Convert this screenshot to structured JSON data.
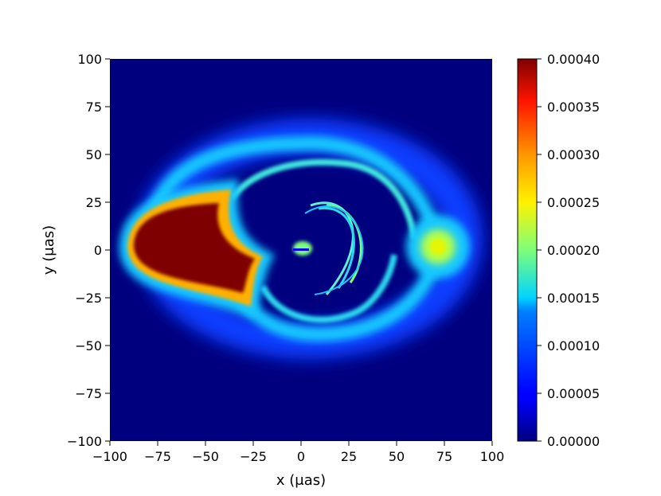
{
  "chart_data": {
    "type": "heatmap",
    "title": "",
    "xlabel": "x (μas)",
    "ylabel": "y (μas)",
    "xlim": [
      -100,
      100
    ],
    "ylim": [
      -100,
      100
    ],
    "xticks": [
      "−100",
      "−75",
      "−50",
      "−25",
      "0",
      "25",
      "50",
      "75",
      "100"
    ],
    "yticks": [
      "−100",
      "−75",
      "−50",
      "−25",
      "0",
      "25",
      "50",
      "75",
      "100"
    ],
    "xtick_values": [
      -100,
      -75,
      -50,
      -25,
      0,
      25,
      50,
      75,
      100
    ],
    "ytick_values": [
      -100,
      -75,
      -50,
      -25,
      0,
      25,
      50,
      75,
      100
    ],
    "colormap": "jet",
    "colorbar": {
      "range": [
        0.0,
        0.0004
      ],
      "ticks": [
        "0.00000",
        "0.00005",
        "0.00010",
        "0.00015",
        "0.00020",
        "0.00025",
        "0.00030",
        "0.00035",
        "0.00040"
      ],
      "tick_values": [
        0.0,
        5e-05,
        0.0001,
        0.00015,
        0.0002,
        0.00025,
        0.0003,
        0.00035,
        0.0004
      ]
    },
    "grid": false,
    "features": [
      {
        "name": "bright-lobe",
        "x": [
          -88,
          -25
        ],
        "y": [
          -28,
          25
        ],
        "value": 0.0004
      },
      {
        "name": "outer-loop",
        "center": [
          5,
          5
        ],
        "radius": [
          68,
          45
        ],
        "value": 0.00015
      },
      {
        "name": "hot-spot",
        "center": [
          70,
          2
        ],
        "value": 0.00024
      },
      {
        "name": "inner-arcs",
        "x": [
          0,
          40
        ],
        "y": [
          -25,
          25
        ],
        "value": 0.00015
      }
    ]
  }
}
